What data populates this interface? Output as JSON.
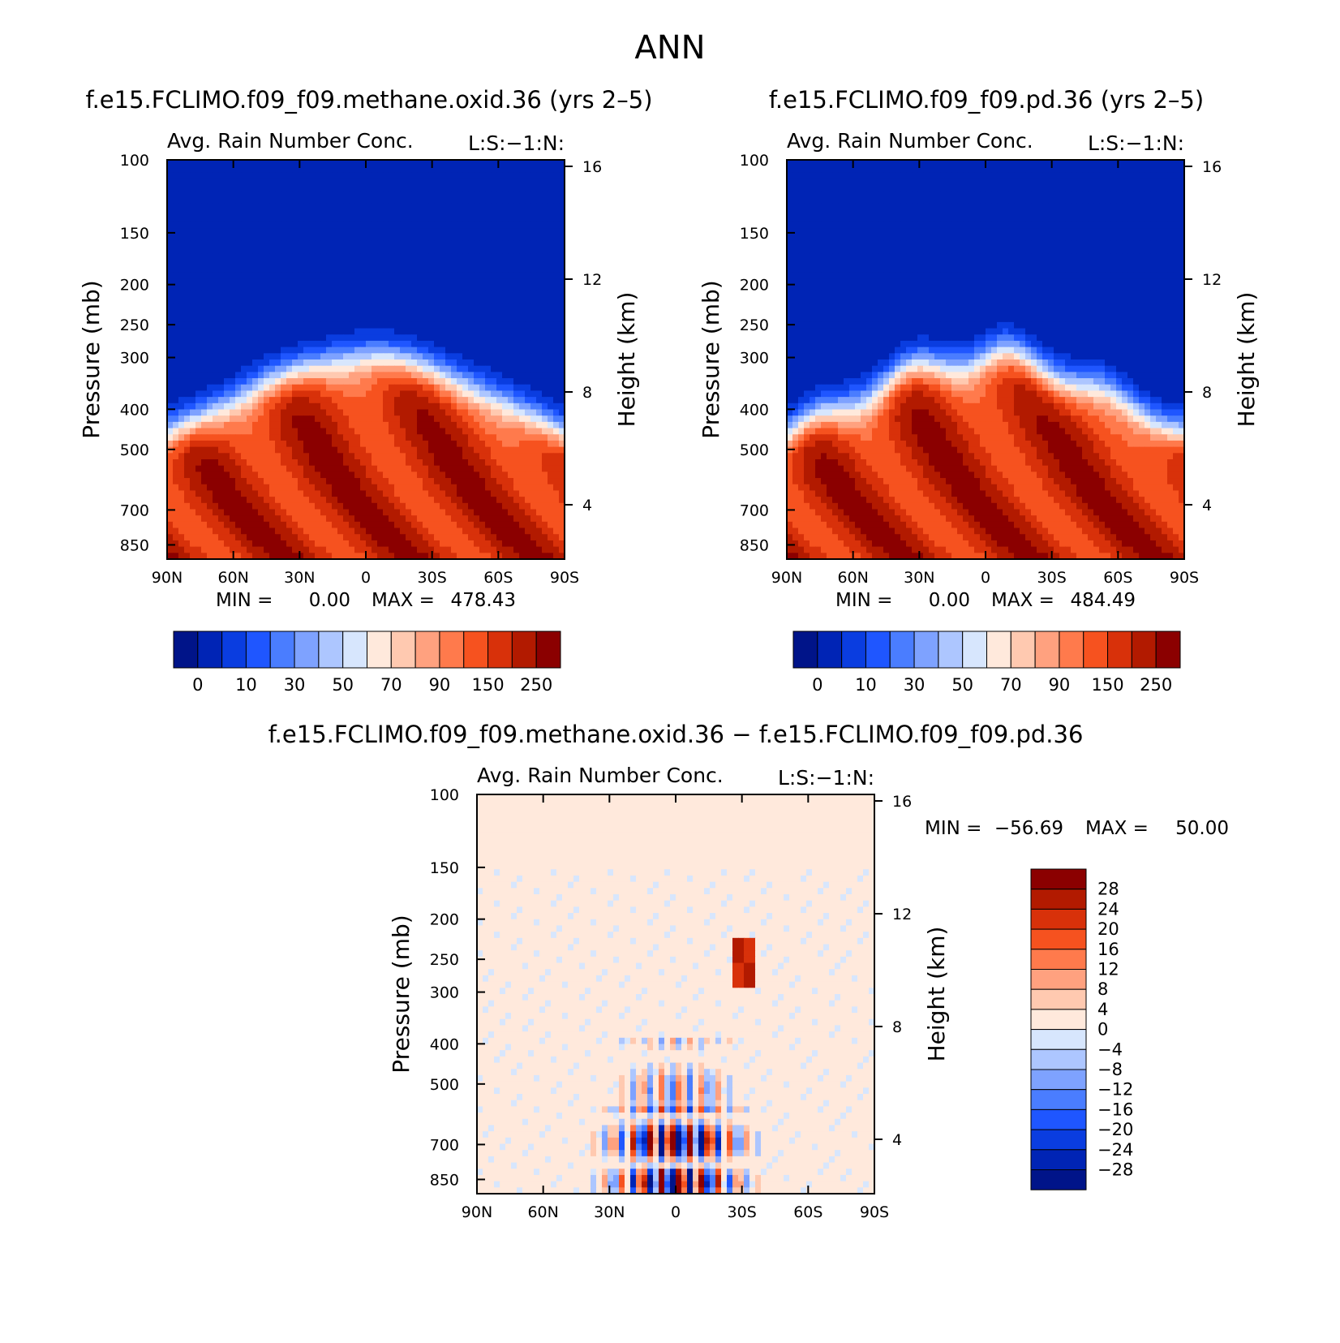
{
  "figure": {
    "title": "ANN"
  },
  "chart_data": [
    {
      "type": "heatmap",
      "case_title": "f.e15.FCLIMO.f09_f09.methane.oxid.36 (yrs 2–5)",
      "title": "Avg. Rain Number Conc.",
      "side_label": "L:S:−1:N:",
      "ylabel": "Pressure (mb)",
      "y2label": "Height (km)",
      "x_ticks": [
        "90N",
        "60N",
        "30N",
        "0",
        "30S",
        "60S",
        "90S"
      ],
      "y_ticks": [
        "100",
        "150",
        "200",
        "250",
        "300",
        "400",
        "500",
        "700",
        "850"
      ],
      "y2_ticks": [
        "16",
        "12",
        "8",
        "4"
      ],
      "min_label": "MIN =",
      "min_value": "0.00",
      "max_label": "MAX =",
      "max_value": "478.43",
      "max_numeric": 478.43,
      "colorbar_labels": [
        "0",
        "10",
        "30",
        "50",
        "70",
        "90",
        "150",
        "250"
      ],
      "colors": [
        "#001489",
        "#0024b5",
        "#0a3de0",
        "#1f56ff",
        "#4a7dff",
        "#7ea2ff",
        "#adc6ff",
        "#d7e6fd",
        "#ffe9dc",
        "#ffc9b0",
        "#ffa17f",
        "#ff7a4c",
        "#f6521f",
        "#d8310a",
        "#b21a00",
        "#8b0000"
      ]
    },
    {
      "type": "heatmap",
      "case_title": "f.e15.FCLIMO.f09_f09.pd.36 (yrs 2–5)",
      "title": "Avg. Rain Number Conc.",
      "side_label": "L:S:−1:N:",
      "ylabel": "Pressure (mb)",
      "y2label": "Height (km)",
      "x_ticks": [
        "90N",
        "60N",
        "30N",
        "0",
        "30S",
        "60S",
        "90S"
      ],
      "y_ticks": [
        "100",
        "150",
        "200",
        "250",
        "300",
        "400",
        "500",
        "700",
        "850"
      ],
      "y2_ticks": [
        "16",
        "12",
        "8",
        "4"
      ],
      "min_label": "MIN =",
      "min_value": "0.00",
      "max_label": "MAX =",
      "max_value": "484.49",
      "max_numeric": 484.49,
      "colorbar_labels": [
        "0",
        "10",
        "30",
        "50",
        "70",
        "90",
        "150",
        "250"
      ],
      "colors": [
        "#001489",
        "#0024b5",
        "#0a3de0",
        "#1f56ff",
        "#4a7dff",
        "#7ea2ff",
        "#adc6ff",
        "#d7e6fd",
        "#ffe9dc",
        "#ffc9b0",
        "#ffa17f",
        "#ff7a4c",
        "#f6521f",
        "#d8310a",
        "#b21a00",
        "#8b0000"
      ]
    },
    {
      "type": "heatmap",
      "case_title": "f.e15.FCLIMO.f09_f09.methane.oxid.36 − f.e15.FCLIMO.f09_f09.pd.36",
      "title": "Avg. Rain Number Conc.",
      "side_label": "L:S:−1:N:",
      "ylabel": "Pressure (mb)",
      "y2label": "Height (km)",
      "x_ticks": [
        "90N",
        "60N",
        "30N",
        "0",
        "30S",
        "60S",
        "90S"
      ],
      "y_ticks": [
        "100",
        "150",
        "200",
        "250",
        "300",
        "400",
        "500",
        "700",
        "850"
      ],
      "y2_ticks": [
        "16",
        "12",
        "8",
        "4"
      ],
      "min_label": "MIN =",
      "min_value": "−56.69",
      "max_label": "MAX =",
      "max_value": "50.00",
      "colorbar_labels": [
        "28",
        "24",
        "20",
        "16",
        "12",
        "8",
        "4",
        "0",
        "−4",
        "−8",
        "−12",
        "−16",
        "−20",
        "−24",
        "−28"
      ],
      "colors": [
        "#8b0000",
        "#b21a00",
        "#d8310a",
        "#f6521f",
        "#ff7a4c",
        "#ffa17f",
        "#ffc9b0",
        "#ffe9dc",
        "#d7e6fd",
        "#adc6ff",
        "#7ea2ff",
        "#4a7dff",
        "#1f56ff",
        "#0a3de0",
        "#0024b5",
        "#001489"
      ]
    }
  ]
}
